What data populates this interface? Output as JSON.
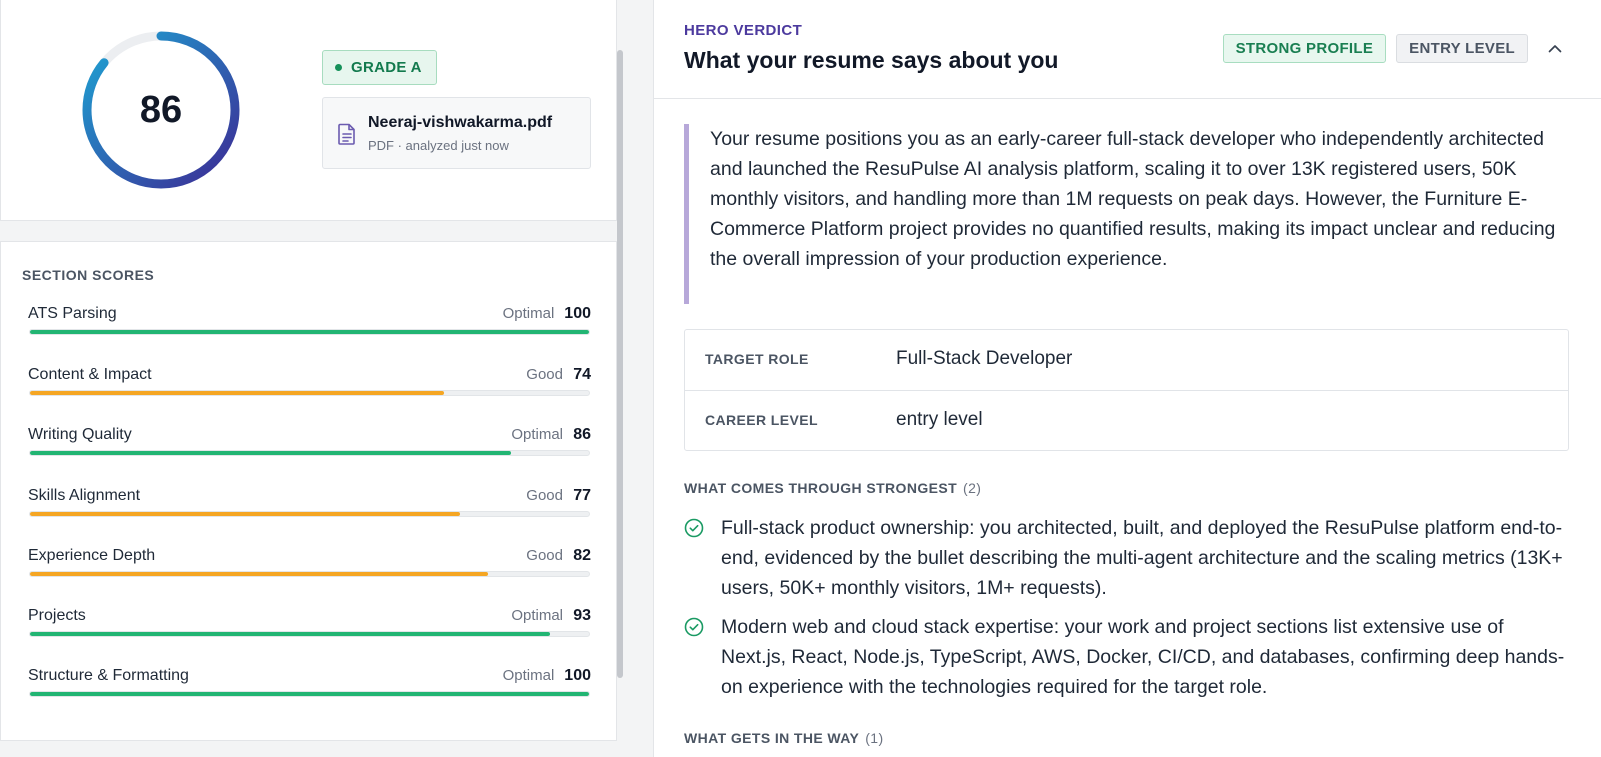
{
  "score": {
    "value": "86",
    "fraction": 0.86,
    "ring_color_start": "#1da5d4",
    "ring_color_end": "#3d2a94"
  },
  "grade": {
    "label": "GRADE A"
  },
  "file": {
    "name": "Neeraj-vishwakarma.pdf",
    "meta": "PDF · analyzed just now",
    "icon": "document-icon"
  },
  "sections": {
    "title": "SECTION SCORES",
    "items": [
      {
        "label": "ATS Parsing",
        "status": "Optimal",
        "score": "100",
        "fraction": 1.0,
        "color": "#22b573"
      },
      {
        "label": "Content & Impact",
        "status": "Good",
        "score": "74",
        "fraction": 0.74,
        "color": "#f5a623"
      },
      {
        "label": "Writing Quality",
        "status": "Optimal",
        "score": "86",
        "fraction": 0.86,
        "color": "#22b573"
      },
      {
        "label": "Skills Alignment",
        "status": "Good",
        "score": "77",
        "fraction": 0.77,
        "color": "#f5a623"
      },
      {
        "label": "Experience Depth",
        "status": "Good",
        "score": "82",
        "fraction": 0.82,
        "color": "#f5a623"
      },
      {
        "label": "Projects",
        "status": "Optimal",
        "score": "93",
        "fraction": 0.93,
        "color": "#22b573"
      },
      {
        "label": "Structure & Formatting",
        "status": "Optimal",
        "score": "100",
        "fraction": 1.0,
        "color": "#22b573"
      }
    ]
  },
  "hero": {
    "eyebrow": "HERO VERDICT",
    "title": "What your resume says about you",
    "badge_strong": "STRONG PROFILE",
    "badge_level": "ENTRY LEVEL",
    "collapse_icon": "chevron-up-icon",
    "verdict": "Your resume positions you as an early-career full-stack developer who independently architected and launched the ResuPulse AI analysis platform, scaling it to over 13K registered users, 50K monthly visitors, and handling more than 1M requests on peak days. However, the Furniture E-Commerce Platform project provides no quantified results, making its impact unclear and reducing the overall impression of your production experience.",
    "target_role_label": "TARGET ROLE",
    "target_role_value": "Full-Stack Developer",
    "career_level_label": "CAREER LEVEL",
    "career_level_value": "entry level",
    "strongest_heading": "WHAT COMES THROUGH STRONGEST",
    "strongest_count": "(2)",
    "strengths": [
      "Full-stack product ownership: you architected, built, and deployed the ResuPulse platform end-to-end, evidenced by the bullet describing the multi-agent architecture and the scaling metrics (13K+ users, 50K+ monthly visitors, 1M+ requests).",
      "Modern web and cloud stack expertise: your work and project sections list extensive use of Next.js, React, Node.js, TypeScript, AWS, Docker, CI/CD, and databases, confirming deep hands-on experience with the technologies required for the target role."
    ],
    "way_heading": "WHAT GETS IN THE WAY",
    "way_count": "(1)"
  }
}
